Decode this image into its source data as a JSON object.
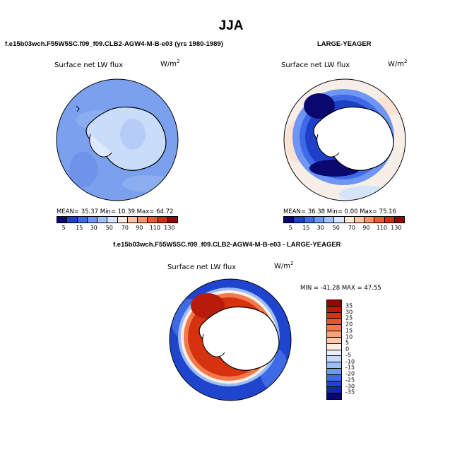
{
  "title": "JJA",
  "panel1": {
    "header": "f.e15b03wch.F55W5SC.f09_f09.CLB2-AGW4-M-B-e03 (yrs 1980-1989)",
    "subtitle": "Surface net LW flux",
    "unit": "W/m",
    "unit_sup": "2",
    "stats": "MEAN=  35.37   Min=  10.39   Max=  64.72",
    "fill_color": "#7aa0ee"
  },
  "panel2": {
    "header": "LARGE-YEAGER",
    "subtitle": "Surface net LW flux",
    "unit": "W/m",
    "unit_sup": "2",
    "stats": "MEAN=  36.38   Min=    0.00   Max=  75.16"
  },
  "panel3": {
    "header": "f.e15b03wch.F55W5SC.f09_f09.CLB2-AGW4-M-B-e03 - LARGE-YEAGER",
    "subtitle": "Surface net LW flux",
    "unit": "W/m",
    "unit_sup": "2",
    "stats": "MIN = -41.28  MAX =  47.55"
  },
  "colorbar_abs": {
    "labels": [
      "5",
      "15",
      "30",
      "50",
      "70",
      "90",
      "110",
      "130"
    ],
    "colors": [
      "#08086e",
      "#1e3fc8",
      "#3f6ae6",
      "#6f96f2",
      "#a4c1f7",
      "#d6e4fb",
      "#fbe6d8",
      "#f8c2a3",
      "#f2946b",
      "#e65b33",
      "#cc2f12",
      "#8e0a05"
    ]
  },
  "colorbar_diff": {
    "labels": [
      "35",
      "30",
      "25",
      "20",
      "15",
      "10",
      "5",
      "0",
      "-5",
      "-10",
      "-15",
      "-20",
      "-25",
      "-30",
      "-35"
    ],
    "colors": [
      "#8e0a05",
      "#b71b0b",
      "#d6320f",
      "#e85428",
      "#f27a4a",
      "#f6a27b",
      "#f9c9ad",
      "#fdeee4",
      "#e8f0fd",
      "#c6d8fa",
      "#9dbdf6",
      "#6e99ef",
      "#3f6ae6",
      "#1f45cf",
      "#102aa0",
      "#08086e"
    ]
  }
}
